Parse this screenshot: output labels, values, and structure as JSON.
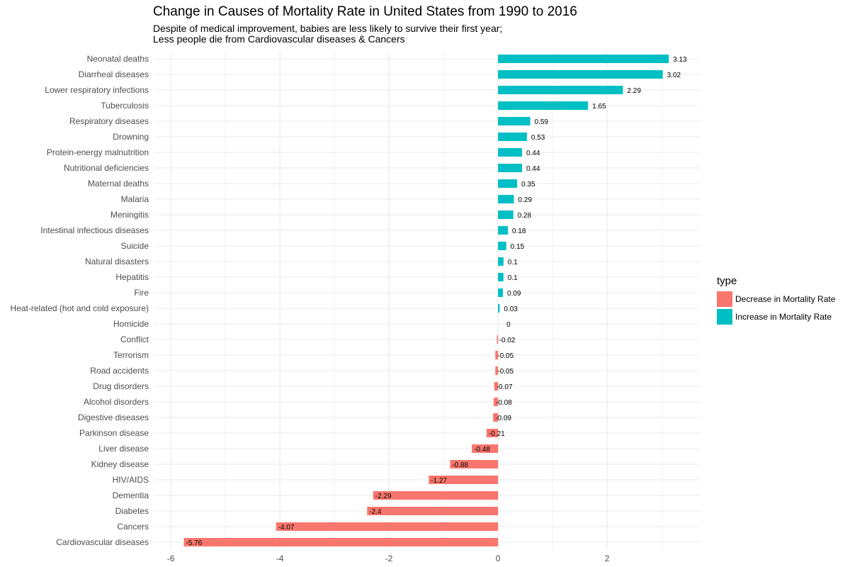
{
  "chart_data": {
    "type": "bar",
    "orientation": "horizontal",
    "title": "Change in Causes of Mortality Rate in United States from 1990 to 2016",
    "subtitle": [
      "Despite of medical improvement, babies are less likely to survive their first year;",
      "Less people die from Cardiovascular diseases & Cancers"
    ],
    "xlabel": "",
    "ylabel": "",
    "xlim": [
      -6.3,
      3.7
    ],
    "x_ticks": [
      -6,
      -4,
      -2,
      0,
      2
    ],
    "grid": true,
    "legend_position": "right",
    "legend": {
      "title": "type",
      "items": [
        {
          "label": "Decrease in Mortality Rate",
          "color": "#F8766D"
        },
        {
          "label": "Increase in Mortality Rate",
          "color": "#00BFC4"
        }
      ]
    },
    "categories": [
      "Neonatal deaths",
      "Diarrheal diseases",
      "Lower respiratory infections",
      "Tuberculosis",
      "Respiratory diseases",
      "Drowning",
      "Protein-energy malnutrition",
      "Nutritional deficiencies",
      "Maternal deaths",
      "Malaria",
      "Meningitis",
      "Intestinal infectious diseases",
      "Suicide",
      "Natural disasters",
      "Hepatitis",
      "Fire",
      "Heat-related (hot and cold exposure)",
      "Homicide",
      "Conflict",
      "Terrorism",
      "Road accidents",
      "Drug disorders",
      "Alcohol disorders",
      "Digestive diseases",
      "Parkinson disease",
      "Liver disease",
      "Kidney disease",
      "HIV/AIDS",
      "Dementia",
      "Diabetes",
      "Cancers",
      "Cardiovascular diseases"
    ],
    "values": [
      3.13,
      3.02,
      2.29,
      1.65,
      0.59,
      0.53,
      0.44,
      0.44,
      0.35,
      0.29,
      0.28,
      0.18,
      0.15,
      0.1,
      0.1,
      0.09,
      0.03,
      0,
      -0.02,
      -0.05,
      -0.05,
      -0.07,
      -0.08,
      -0.09,
      -0.21,
      -0.48,
      -0.88,
      -1.27,
      -2.29,
      -2.4,
      -4.07,
      -5.76
    ],
    "value_labels": [
      "3.13",
      "3.02",
      "2.29",
      "1.65",
      "0.59",
      "0.53",
      "0.44",
      "0.44",
      "0.35",
      "0.29",
      "0.28",
      "0.18",
      "0.15",
      "0.1",
      "0.1",
      "0.09",
      "0.03",
      "0",
      "-0.02",
      "-0.05",
      "-0.05",
      "-0.07",
      "-0.08",
      "-0.09",
      "-0.21",
      "-0.48",
      "-0.88",
      "-1.27",
      "-2.29",
      "-2.4",
      "-4.07",
      "-5.76"
    ],
    "colors": {
      "positive": "#00BFC4",
      "negative": "#F8766D",
      "grid": "#EBEBEB",
      "axis_text": "#4D4D4D"
    }
  }
}
